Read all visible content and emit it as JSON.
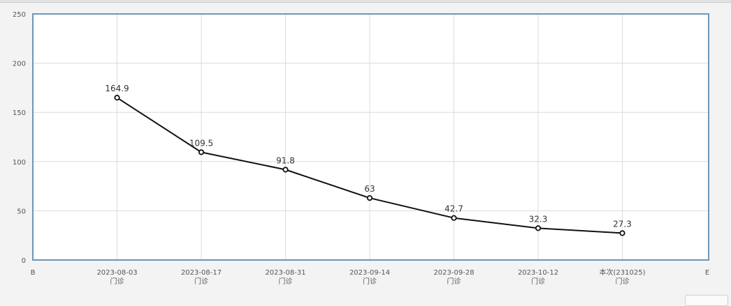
{
  "chart_data": {
    "type": "line",
    "title": "",
    "xlabel": "",
    "ylabel": "",
    "ylim": [
      0,
      250
    ],
    "yticks": [
      0,
      50,
      100,
      150,
      200,
      250
    ],
    "grid": true,
    "x_edge_labels": [
      "B",
      "E"
    ],
    "categories": [
      {
        "date": "2023-08-03",
        "sub": "门诊"
      },
      {
        "date": "2023-08-17",
        "sub": "门诊"
      },
      {
        "date": "2023-08-31",
        "sub": "门诊"
      },
      {
        "date": "2023-09-14",
        "sub": "门诊"
      },
      {
        "date": "2023-09-28",
        "sub": "门诊"
      },
      {
        "date": "2023-10-12",
        "sub": "门诊"
      },
      {
        "date": "本次(231025)",
        "sub": "门诊"
      }
    ],
    "values": [
      164.9,
      109.5,
      91.8,
      63,
      42.7,
      32.3,
      27.3
    ],
    "value_labels": [
      "164.9",
      "109.5",
      "91.8",
      "63",
      "42.7",
      "32.3",
      "27.3"
    ],
    "colors": {
      "line": "#111111",
      "border": "#6b96b8",
      "plot_bg": "#ffffff"
    }
  }
}
